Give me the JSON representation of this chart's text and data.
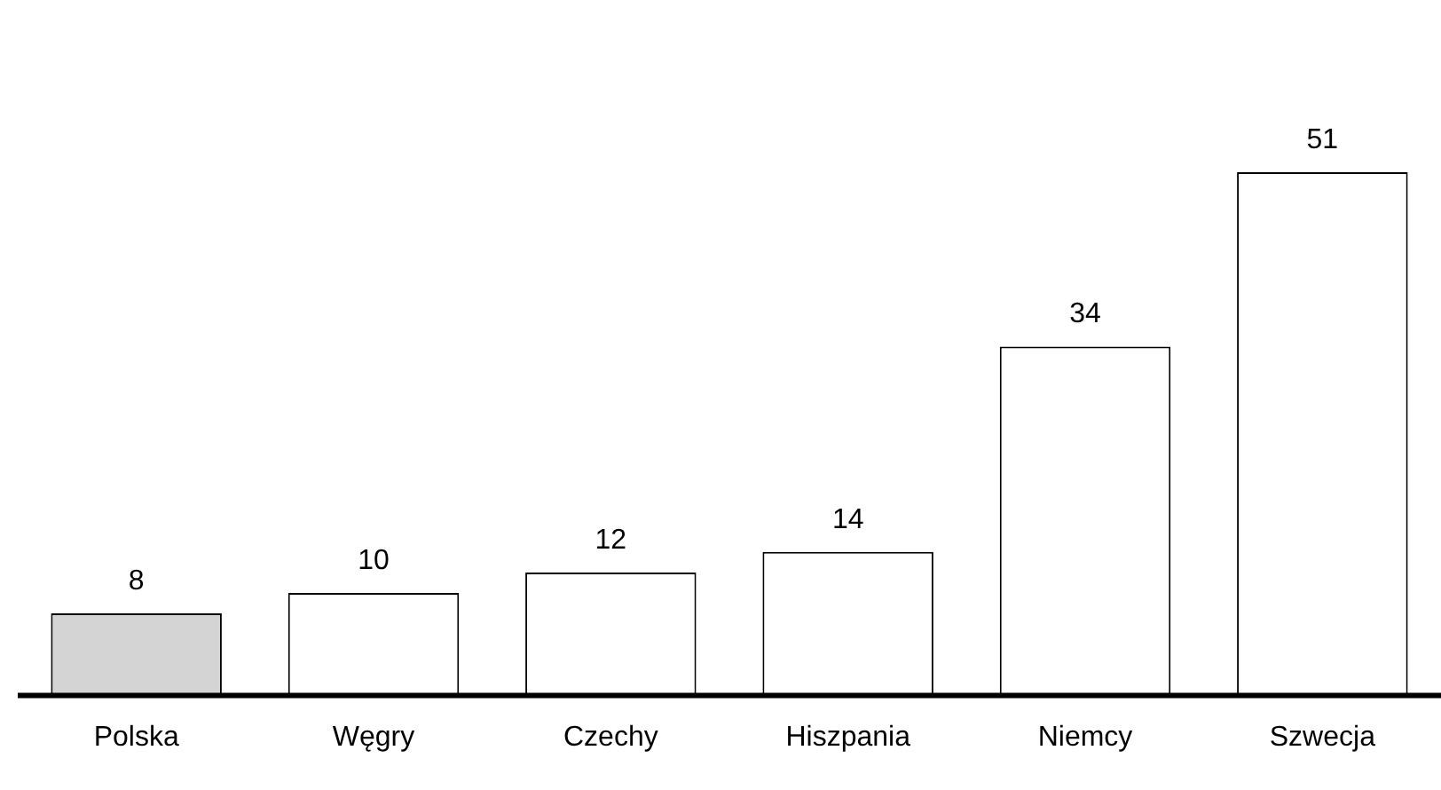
{
  "chart_data": {
    "type": "bar",
    "categories": [
      "Polska",
      "Węgry",
      "Czechy",
      "Hiszpania",
      "Niemcy",
      "Szwecja"
    ],
    "values": [
      8,
      10,
      12,
      14,
      34,
      51
    ],
    "colors": [
      "#d4d4d4",
      "#ffffff",
      "#ffffff",
      "#ffffff",
      "#ffffff",
      "#ffffff"
    ],
    "data_labels": true,
    "grid": false,
    "legend": false,
    "tick_labels": "x"
  }
}
